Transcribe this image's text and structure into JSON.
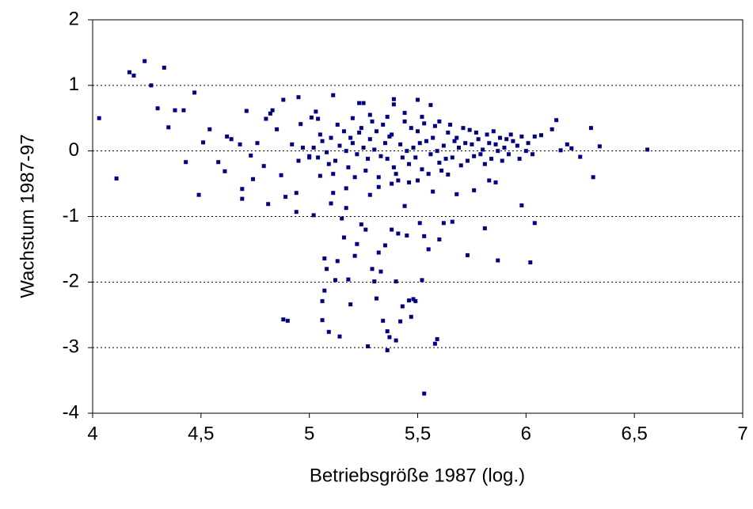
{
  "chart_data": {
    "type": "scatter",
    "x_label": "Betriebsgröße 1987 (log.)",
    "y_label": "Wachstum 1987-97",
    "color": "#000080",
    "grid": true,
    "xlim": [
      4,
      7
    ],
    "xticks": [
      4,
      {
        "value": 4.5,
        "label": "4,5"
      },
      5,
      {
        "value": 5.5,
        "label": "5,5"
      },
      6,
      {
        "value": 6.5,
        "label": "6,5"
      },
      7
    ],
    "ylim": [
      -4,
      2
    ],
    "yticks": [
      -4,
      -3,
      -2,
      -1,
      0,
      1,
      2
    ],
    "x": [
      4.03,
      4.11,
      4.17,
      4.19,
      4.24,
      4.27,
      4.3,
      4.33,
      4.35,
      4.38,
      4.42,
      4.43,
      4.47,
      4.49,
      4.51,
      4.54,
      4.58,
      4.61,
      4.62,
      4.64,
      4.68,
      4.69,
      4.69,
      4.71,
      4.73,
      4.74,
      4.76,
      4.79,
      4.8,
      4.81,
      4.82,
      4.83,
      4.85,
      4.87,
      4.88,
      4.89,
      4.88,
      4.9,
      4.94,
      4.95,
      4.94,
      4.96,
      5,
      5.01,
      5.02,
      5.03,
      5.04,
      5.05,
      5.06,
      5.06,
      5.07,
      5.07,
      5.08,
      5.09,
      5.1,
      5.11,
      5.11,
      5.12,
      5.13,
      5.14,
      5.15,
      5.16,
      5.17,
      5.17,
      5.18,
      5.19,
      5.21,
      5.22,
      5.23,
      5.24,
      5.25,
      5.26,
      5.27,
      5.28,
      5.29,
      5.3,
      5.31,
      5.32,
      5.33,
      5.34,
      5.35,
      5.36,
      5.36,
      5.37,
      5.38,
      5.39,
      5.39,
      5.4,
      5.4,
      5.41,
      5.42,
      5.43,
      5.44,
      5.45,
      5.46,
      5.47,
      5.48,
      5.49,
      5.5,
      5.51,
      5.52,
      5.53,
      5.53,
      5.55,
      5.56,
      5.57,
      5.58,
      5.59,
      5.6,
      5.62,
      5.64,
      5.66,
      5.68,
      5.73,
      5.76,
      5.81,
      5.83,
      5.86,
      5.87,
      5.98,
      6.04,
      6.02,
      6.04,
      6.07,
      6.12,
      6.14,
      6.16,
      6.19,
      6.21,
      6.25,
      6.3,
      6.31,
      6.34,
      6.56,
      5.02,
      5.04,
      5.06,
      5.08,
      5.1,
      5.12,
      5.14,
      5.16,
      5.18,
      5.2,
      5.22,
      5.24,
      5.26,
      5.28,
      5.3,
      5.32,
      5.34,
      5.36,
      5.38,
      5.4,
      5.42,
      5.44,
      5.46,
      5.48,
      5.5,
      5.52,
      5.54,
      5.56,
      5.58,
      5.6,
      5.62,
      5.64,
      5.66,
      5.68,
      5.7,
      5.72,
      5.74,
      5.76,
      5.78,
      5.8,
      5.82,
      5.84,
      5.86,
      5.88,
      5.9,
      5.92,
      5.94,
      5.96,
      5.98,
      6.0,
      5.05,
      5.09,
      5.13,
      5.17,
      5.21,
      5.25,
      5.29,
      5.33,
      5.37,
      5.41,
      5.45,
      5.49,
      5.53,
      5.57,
      5.61,
      5.65,
      5.69,
      5.73,
      5.77,
      5.81,
      5.85,
      5.89,
      5.93,
      5.97,
      6.01,
      6.03,
      5.0,
      4.97,
      4.95,
      4.92,
      5.11,
      5.19,
      5.23,
      5.27,
      5.31,
      5.35,
      5.39,
      5.43,
      5.47,
      5.51,
      5.55,
      5.59,
      5.63,
      5.67,
      5.71,
      5.75,
      5.79,
      5.83,
      5.87,
      5.91,
      5.36,
      5.44,
      5.28,
      5.52,
      5.6,
      5.2,
      5.38,
      5.46,
      5.32,
      5.5
    ],
    "values": [
      0.5,
      -0.42,
      1.2,
      1.15,
      1.37,
      1,
      0.65,
      1.27,
      0.36,
      0.62,
      0.62,
      -0.17,
      0.89,
      -0.67,
      0.13,
      0.33,
      -0.17,
      -0.31,
      0.22,
      0.18,
      0.1,
      -0.58,
      -0.73,
      0.61,
      -0.07,
      -0.43,
      0.12,
      -0.23,
      0.49,
      -0.81,
      0.57,
      0.62,
      0.33,
      -0.37,
      0.78,
      -0.7,
      -2.57,
      -2.59,
      -0.93,
      0.82,
      -0.64,
      0.41,
      -0.08,
      0.51,
      -0.98,
      0.6,
      0.49,
      -0.38,
      -2.29,
      -2.58,
      -2.13,
      -1.64,
      -1.8,
      -2.76,
      -0.8,
      0.85,
      -0.64,
      -1.97,
      -1.68,
      -2.83,
      -1.03,
      -1.32,
      -0.87,
      -0.57,
      -1.96,
      -2.34,
      -1.6,
      -1.42,
      0.73,
      -1.12,
      0.73,
      -1.2,
      -2.98,
      -0.67,
      -1.8,
      -1.99,
      -2.25,
      -1.55,
      -1.84,
      -2.59,
      -1.44,
      -2.75,
      -3.04,
      -2.84,
      -1.2,
      0.71,
      0.79,
      -1.99,
      -2.89,
      -1.26,
      -2.6,
      -2.37,
      -0.84,
      -1.29,
      -2.28,
      -2.53,
      -2.26,
      -2.29,
      0.78,
      -1.1,
      -1.97,
      -3.7,
      -1.3,
      -1.5,
      0.7,
      -0.62,
      -2.94,
      -2.87,
      -1.35,
      -1.1,
      -0.36,
      -1.08,
      -0.66,
      -1.59,
      -0.6,
      -1.18,
      -0.45,
      -0.48,
      -1.67,
      -0.83,
      -1.1,
      -1.7,
      0.22,
      0.24,
      0.33,
      0.47,
      0.01,
      0.1,
      0.04,
      -0.09,
      0.35,
      -0.4,
      0.07,
      0.02,
      0.05,
      -0.1,
      0.15,
      -0.02,
      0.2,
      -0.15,
      0.08,
      0.3,
      -0.25,
      0.12,
      -0.05,
      0.35,
      -0.3,
      0.18,
      0.02,
      -0.4,
      0.4,
      -0.12,
      0.25,
      -0.35,
      0.1,
      0.45,
      -0.2,
      0.05,
      0.3,
      -0.28,
      0.15,
      -0.05,
      0.38,
      -0.18,
      0.08,
      0.28,
      -0.1,
      0.2,
      -0.22,
      0.12,
      0.32,
      -0.08,
      0.18,
      0.02,
      0.25,
      -0.12,
      0.1,
      0.2,
      0.05,
      -0.05,
      0.15,
      0.08,
      0.22,
      0.0,
      0.25,
      -0.2,
      0.4,
      0.0,
      -0.4,
      0.05,
      0.45,
      -0.08,
      0.22,
      -0.45,
      0.0,
      -0.1,
      0.42,
      0.2,
      -0.3,
      0.4,
      0.05,
      -0.15,
      0.28,
      -0.2,
      0.3,
      -0.15,
      0.25,
      -0.12,
      0.12,
      -0.05,
      -0.1,
      0.05,
      -0.15,
      0.1,
      -0.35,
      0.2,
      0.28,
      -0.12,
      0.3,
      0.12,
      -0.25,
      -0.1,
      0.35,
      0.12,
      -0.35,
      0.0,
      -0.12,
      0.15,
      0.35,
      0.1,
      -0.05,
      0.12,
      0.0,
      0.18,
      0.52,
      0.58,
      0.55,
      0.52,
      0.45,
      0.5,
      -0.5,
      -0.48,
      -0.55,
      -0.45
    ]
  }
}
